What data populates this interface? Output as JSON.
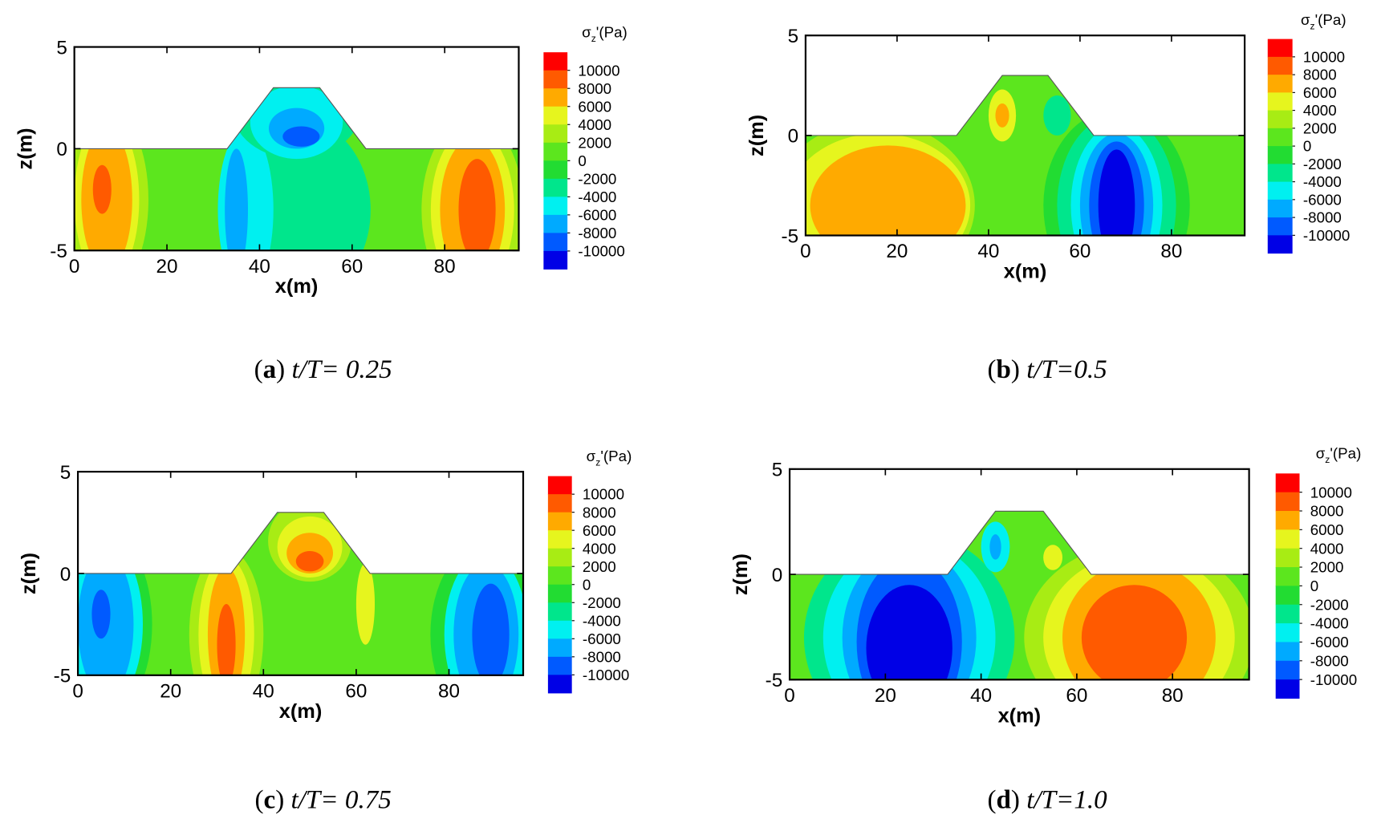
{
  "chart_data": [
    {
      "type": "contour",
      "panel_label": "a",
      "caption": "t/T= 0.25",
      "xlabel": "x(m)",
      "ylabel": "z(m)",
      "xlim": [
        0,
        96
      ],
      "ylim": [
        -5,
        5
      ],
      "xticks": [
        0,
        20,
        40,
        60,
        80
      ],
      "yticks": [
        -5,
        0,
        5
      ],
      "colorbar_title": {
        "symbol": "σ",
        "subscript": "z",
        "unit": "'(Pa)"
      },
      "colorbar_ticks": [
        10000,
        8000,
        6000,
        4000,
        2000,
        0,
        -2000,
        -4000,
        -6000,
        -8000,
        -10000
      ],
      "colors": [
        "#ff0000",
        "#ff5a00",
        "#ffaa00",
        "#e6f51e",
        "#a8ec14",
        "#5ce61e",
        "#22dc32",
        "#00e68c",
        "#00f0f0",
        "#00aaff",
        "#005aff",
        "#0000e6"
      ]
    },
    {
      "type": "contour",
      "panel_label": "b",
      "caption": "t/T=0.5",
      "xlabel": "x(m)",
      "ylabel": "z(m)",
      "xlim": [
        0,
        96
      ],
      "ylim": [
        -5,
        5
      ],
      "xticks": [
        0,
        20,
        40,
        60,
        80
      ],
      "yticks": [
        -5,
        0,
        5
      ],
      "colorbar_title": {
        "symbol": "σ",
        "subscript": "z",
        "unit": "'(Pa)"
      },
      "colorbar_ticks": [
        10000,
        8000,
        6000,
        4000,
        2000,
        0,
        -2000,
        -4000,
        -6000,
        -8000,
        -10000
      ],
      "colors": [
        "#ff0000",
        "#ff5a00",
        "#ffaa00",
        "#e6f51e",
        "#a8ec14",
        "#5ce61e",
        "#22dc32",
        "#00e68c",
        "#00f0f0",
        "#00aaff",
        "#005aff",
        "#0000e6"
      ]
    },
    {
      "type": "contour",
      "panel_label": "c",
      "caption": "t/T= 0.75",
      "xlabel": "x(m)",
      "ylabel": "z(m)",
      "xlim": [
        0,
        96
      ],
      "ylim": [
        -5,
        5
      ],
      "xticks": [
        0,
        20,
        40,
        60,
        80
      ],
      "yticks": [
        -5,
        0,
        5
      ],
      "colorbar_title": {
        "symbol": "σ",
        "subscript": "z",
        "unit": "'(Pa)"
      },
      "colorbar_ticks": [
        10000,
        8000,
        6000,
        4000,
        2000,
        0,
        -2000,
        -4000,
        -6000,
        -8000,
        -10000
      ],
      "colors": [
        "#ff0000",
        "#ff5a00",
        "#ffaa00",
        "#e6f51e",
        "#a8ec14",
        "#5ce61e",
        "#22dc32",
        "#00e68c",
        "#00f0f0",
        "#00aaff",
        "#005aff",
        "#0000e6"
      ]
    },
    {
      "type": "contour",
      "panel_label": "d",
      "caption": "t/T=1.0",
      "xlabel": "x(m)",
      "ylabel": "z(m)",
      "xlim": [
        0,
        96
      ],
      "ylim": [
        -5,
        5
      ],
      "xticks": [
        0,
        20,
        40,
        60,
        80
      ],
      "yticks": [
        -5,
        0,
        5
      ],
      "colorbar_title": {
        "symbol": "σ",
        "subscript": "z",
        "unit": "'(Pa)"
      },
      "colorbar_ticks": [
        10000,
        8000,
        6000,
        4000,
        2000,
        0,
        -2000,
        -4000,
        -6000,
        -8000,
        -10000
      ],
      "colors": [
        "#ff0000",
        "#ff5a00",
        "#ffaa00",
        "#e6f51e",
        "#a8ec14",
        "#5ce61e",
        "#22dc32",
        "#00e68c",
        "#00f0f0",
        "#00aaff",
        "#005aff",
        "#0000e6"
      ]
    }
  ]
}
